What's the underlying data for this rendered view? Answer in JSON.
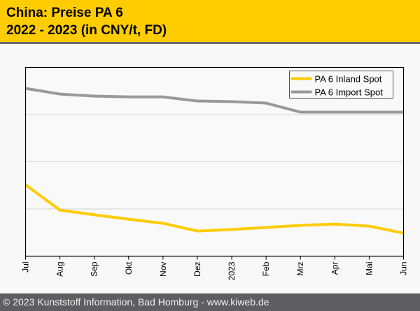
{
  "header": {
    "title_line1": "China: Preise PA 6",
    "title_line2": "2022 - 2023 (in CNY/t, FD)"
  },
  "footer": {
    "text": "© 2023 Kunststoff Information, Bad Homburg - www.kiweb.de"
  },
  "colors": {
    "header_bg": "#ffcc00",
    "inland": "#ffcc00",
    "import": "#999999",
    "footer_bg": "#5e5e60"
  },
  "chart_data": {
    "type": "line",
    "title": "China: Preise PA 6 2022 - 2023 (in CNY/t, FD)",
    "xlabel": "",
    "ylabel": "",
    "y_units_note": "relative scale (no y tick labels shown); 0 = plot bottom, 100 = plot top",
    "ylim": [
      0,
      100
    ],
    "y_gridlines": [
      25,
      50,
      75
    ],
    "grid": true,
    "legend_position": "top-right",
    "categories": [
      "Jul",
      "Aug",
      "Sep",
      "Okt",
      "Nov",
      "Dez",
      "2023",
      "Feb",
      "Mrz",
      "Apr",
      "Mai",
      "Jun"
    ],
    "series": [
      {
        "name": "PA 6 Inland Spot",
        "color": "#ffcc00",
        "values": [
          37.8,
          24.4,
          21.9,
          19.6,
          17.4,
          13.3,
          14.1,
          15.2,
          16.3,
          17.0,
          15.9,
          12.2
        ]
      },
      {
        "name": "PA 6 Import Spot",
        "color": "#999999",
        "values": [
          88.9,
          85.9,
          84.8,
          84.4,
          84.4,
          82.2,
          81.9,
          81.1,
          76.3,
          76.3,
          76.3,
          76.3
        ]
      }
    ]
  }
}
